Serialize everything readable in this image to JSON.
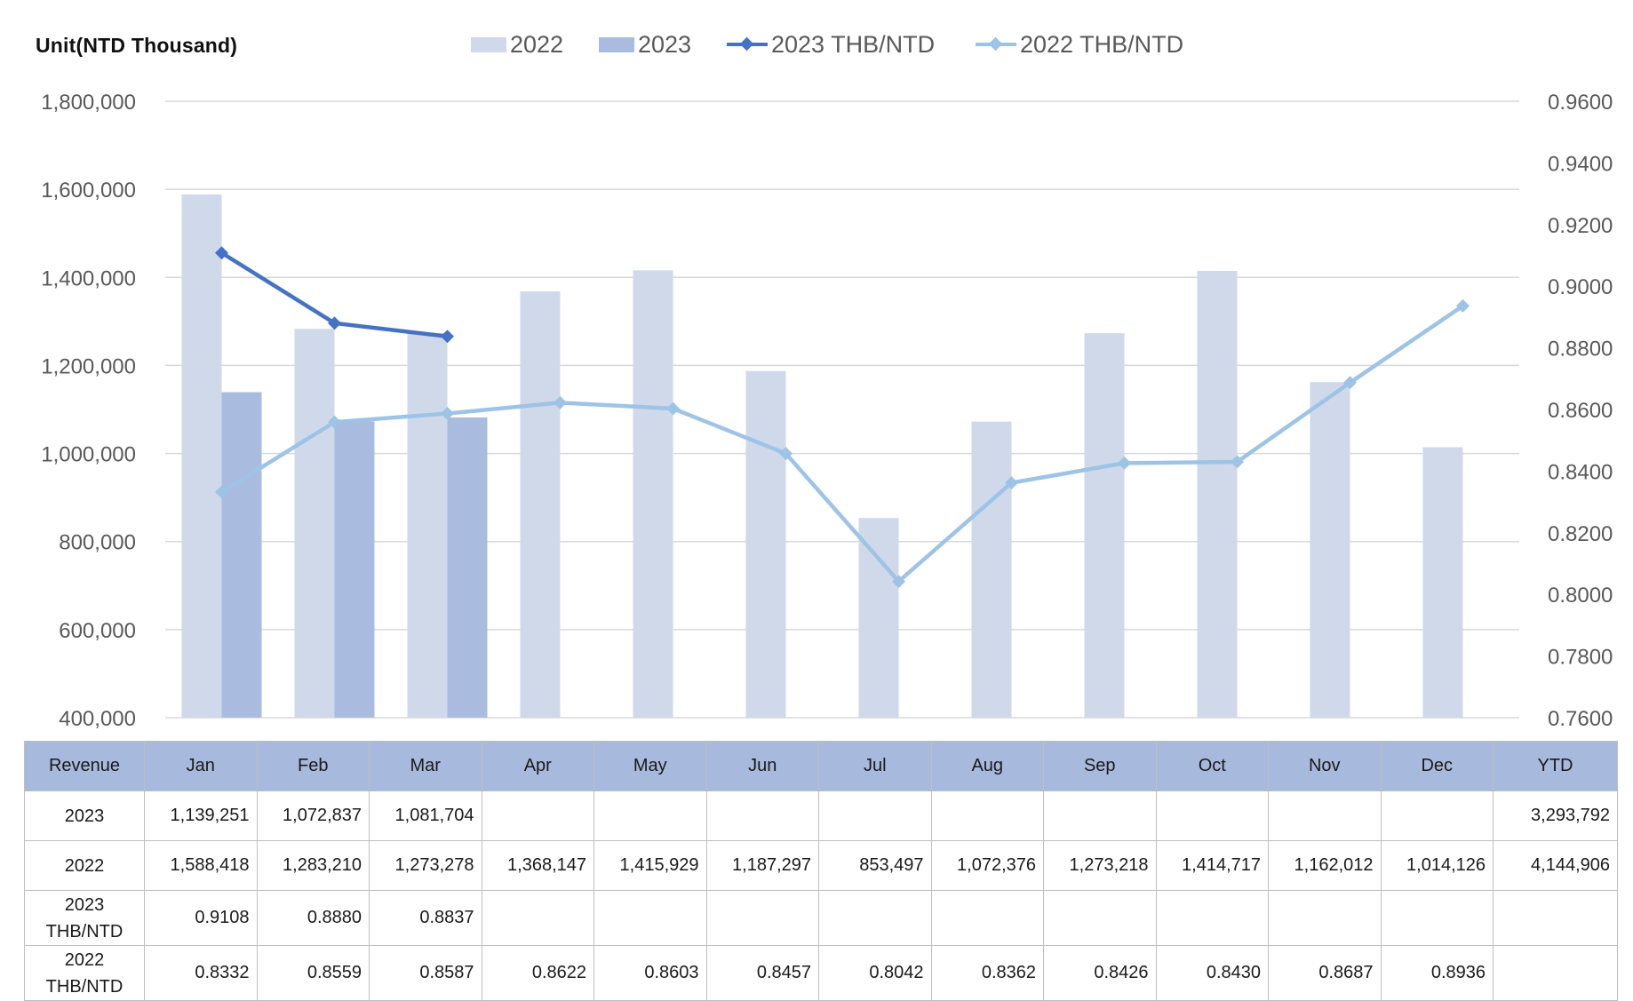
{
  "unit_label": "Unit(NTD Thousand)",
  "legend": [
    {
      "label": "2022",
      "kind": "bar",
      "color": "#cfd9ea"
    },
    {
      "label": "2023",
      "kind": "bar",
      "color": "#a9bcdf"
    },
    {
      "label": "2023 THB/NTD",
      "kind": "line",
      "color": "#4472c4"
    },
    {
      "label": "2022 THB/NTD",
      "kind": "line",
      "color": "#9dc3e6"
    }
  ],
  "chart_data": {
    "type": "bar",
    "categories": [
      "Jan",
      "Feb",
      "Mar",
      "Apr",
      "May",
      "Jun",
      "Jul",
      "Aug",
      "Sep",
      "Oct",
      "Nov",
      "Dec"
    ],
    "ylim": [
      400000,
      1800000
    ],
    "y_ticks": [
      "1,800,000",
      "1,600,000",
      "1,400,000",
      "1,200,000",
      "1,000,000",
      "800,000",
      "600,000",
      "400,000"
    ],
    "y2lim": [
      0.76,
      0.96
    ],
    "y2_ticks": [
      "0.9600",
      "0.9400",
      "0.9200",
      "0.9000",
      "0.8800",
      "0.8600",
      "0.8400",
      "0.8200",
      "0.8000",
      "0.7800",
      "0.7600"
    ],
    "grid": true,
    "legend_position": "top",
    "series": [
      {
        "name": "2022",
        "type": "bar",
        "axis": "left",
        "color": "#cfd9ea",
        "values": [
          1588418,
          1283210,
          1273278,
          1368147,
          1415929,
          1187297,
          853497,
          1072376,
          1273218,
          1414717,
          1162012,
          1014126
        ]
      },
      {
        "name": "2023",
        "type": "bar",
        "axis": "left",
        "color": "#a9bcdf",
        "values": [
          1139251,
          1072837,
          1081704,
          null,
          null,
          null,
          null,
          null,
          null,
          null,
          null,
          null
        ]
      },
      {
        "name": "2023 THB/NTD",
        "type": "line",
        "axis": "right",
        "color": "#4472c4",
        "values": [
          0.9108,
          0.888,
          0.8837,
          null,
          null,
          null,
          null,
          null,
          null,
          null,
          null,
          null
        ]
      },
      {
        "name": "2022 THB/NTD",
        "type": "line",
        "axis": "right",
        "color": "#9dc3e6",
        "values": [
          0.8332,
          0.8559,
          0.8587,
          0.8622,
          0.8603,
          0.8457,
          0.8042,
          0.8362,
          0.8426,
          0.843,
          0.8687,
          0.8936
        ]
      }
    ]
  },
  "table": {
    "header": [
      "Revenue",
      "Jan",
      "Feb",
      "Mar",
      "Apr",
      "May",
      "Jun",
      "Jul",
      "Aug",
      "Sep",
      "Oct",
      "Nov",
      "Dec",
      "YTD"
    ],
    "rows": [
      {
        "label": "2023",
        "cells": [
          "1,139,251",
          "1,072,837",
          "1,081,704",
          "",
          "",
          "",
          "",
          "",
          "",
          "",
          "",
          "",
          "3,293,792"
        ]
      },
      {
        "label": "2022",
        "cells": [
          "1,588,418",
          "1,283,210",
          "1,273,278",
          "1,368,147",
          "1,415,929",
          "1,187,297",
          "853,497",
          "1,072,376",
          "1,273,218",
          "1,414,717",
          "1,162,012",
          "1,014,126",
          "4,144,906"
        ]
      },
      {
        "label": "2023 THB/NTD",
        "cells": [
          "0.9108",
          "0.8880",
          "0.8837",
          "",
          "",
          "",
          "",
          "",
          "",
          "",
          "",
          "",
          ""
        ]
      },
      {
        "label": "2022 THB/NTD",
        "cells": [
          "0.8332",
          "0.8559",
          "0.8587",
          "0.8622",
          "0.8603",
          "0.8457",
          "0.8042",
          "0.8362",
          "0.8426",
          "0.8430",
          "0.8687",
          "0.8936",
          ""
        ]
      }
    ]
  }
}
